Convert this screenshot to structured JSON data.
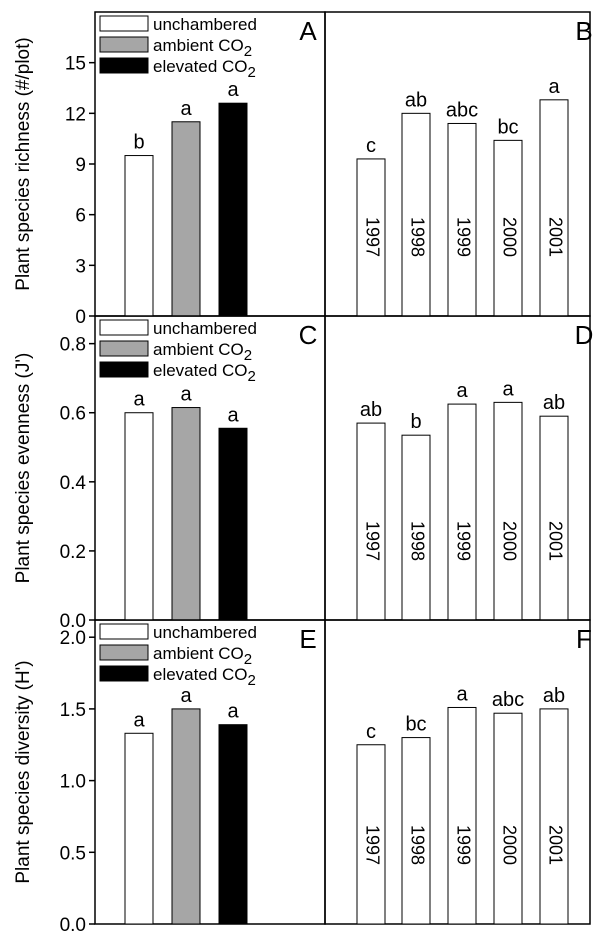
{
  "colors": {
    "unchambered": "#ffffff",
    "ambient": "#a6a6a6",
    "elevated": "#000000",
    "year_bar": "#ffffff",
    "axis": "#000000"
  },
  "chart_data": [
    {
      "panel": "A",
      "type": "bar",
      "ylabel": "Plant species richness (#/plot)",
      "ylim": [
        0,
        18
      ],
      "yticks": [
        "0",
        "3",
        "6",
        "9",
        "12",
        "15"
      ],
      "legend": {
        "placement": "top-left",
        "entries": [
          {
            "label": "unchambered",
            "color_key": "unchambered"
          },
          {
            "label": "ambient CO",
            "sub": "2",
            "color_key": "ambient"
          },
          {
            "label": "elevated CO",
            "sub": "2",
            "color_key": "elevated"
          }
        ]
      },
      "categories": [
        "unchambered",
        "ambient CO2",
        "elevated CO2"
      ],
      "values": [
        9.5,
        11.5,
        12.6
      ],
      "letters": [
        "b",
        "a",
        "a"
      ]
    },
    {
      "panel": "B",
      "type": "bar",
      "ylim": [
        0,
        18
      ],
      "categories": [
        "1997",
        "1998",
        "1999",
        "2000",
        "2001"
      ],
      "values": [
        9.3,
        12.0,
        11.4,
        10.4,
        12.8
      ],
      "letters": [
        "c",
        "ab",
        "abc",
        "bc",
        "a"
      ]
    },
    {
      "panel": "C",
      "type": "bar",
      "ylabel": "Plant species evenness (J')",
      "ylim": [
        0,
        0.88
      ],
      "yticks": [
        "0.0",
        "0.2",
        "0.4",
        "0.6",
        "0.8"
      ],
      "legend": {
        "placement": "top-left",
        "entries": [
          {
            "label": "unchambered",
            "color_key": "unchambered"
          },
          {
            "label": "ambient CO",
            "sub": "2",
            "color_key": "ambient"
          },
          {
            "label": "elevated CO",
            "sub": "2",
            "color_key": "elevated"
          }
        ]
      },
      "categories": [
        "unchambered",
        "ambient CO2",
        "elevated CO2"
      ],
      "values": [
        0.6,
        0.615,
        0.555
      ],
      "letters": [
        "a",
        "a",
        "a"
      ]
    },
    {
      "panel": "D",
      "type": "bar",
      "ylim": [
        0,
        0.88
      ],
      "categories": [
        "1997",
        "1998",
        "1999",
        "2000",
        "2001"
      ],
      "values": [
        0.57,
        0.535,
        0.625,
        0.63,
        0.59
      ],
      "letters": [
        "ab",
        "b",
        "a",
        "a",
        "ab"
      ]
    },
    {
      "panel": "E",
      "type": "bar",
      "ylabel": "Plant species diversity (H')",
      "ylim": [
        0,
        2.12
      ],
      "yticks": [
        "0.0",
        "0.5",
        "1.0",
        "1.5",
        "2.0"
      ],
      "legend": {
        "placement": "top-left",
        "entries": [
          {
            "label": "unchambered",
            "color_key": "unchambered"
          },
          {
            "label": "ambient CO",
            "sub": "2",
            "color_key": "ambient"
          },
          {
            "label": "elevated CO",
            "sub": "2",
            "color_key": "elevated"
          }
        ]
      },
      "categories": [
        "unchambered",
        "ambient CO2",
        "elevated CO2"
      ],
      "values": [
        1.33,
        1.5,
        1.39
      ],
      "letters": [
        "a",
        "a",
        "a"
      ]
    },
    {
      "panel": "F",
      "type": "bar",
      "ylim": [
        0,
        2.12
      ],
      "categories": [
        "1997",
        "1998",
        "1999",
        "2000",
        "2001"
      ],
      "values": [
        1.25,
        1.3,
        1.51,
        1.47,
        1.5
      ],
      "letters": [
        "c",
        "bc",
        "a",
        "abc",
        "ab"
      ]
    }
  ]
}
